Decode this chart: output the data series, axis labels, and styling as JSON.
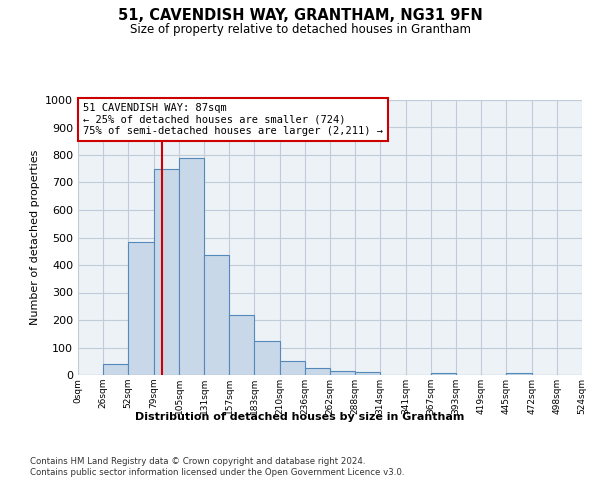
{
  "title": "51, CAVENDISH WAY, GRANTHAM, NG31 9FN",
  "subtitle": "Size of property relative to detached houses in Grantham",
  "xlabel": "Distribution of detached houses by size in Grantham",
  "ylabel": "Number of detached properties",
  "bin_edges": [
    0,
    26,
    52,
    79,
    105,
    131,
    157,
    183,
    210,
    236,
    262,
    288,
    314,
    341,
    367,
    393,
    419,
    445,
    472,
    498,
    524
  ],
  "counts": [
    0,
    40,
    485,
    750,
    790,
    435,
    220,
    125,
    50,
    25,
    15,
    10,
    0,
    0,
    8,
    0,
    0,
    8,
    0,
    0
  ],
  "bar_color": "#c8d8e8",
  "bar_edge_color": "#5588bb",
  "property_size": 87,
  "vline_color": "#cc0000",
  "annotation_text": "51 CAVENDISH WAY: 87sqm\n← 25% of detached houses are smaller (724)\n75% of semi-detached houses are larger (2,211) →",
  "annotation_box_color": "#cc0000",
  "ylim": [
    0,
    1000
  ],
  "yticks": [
    0,
    100,
    200,
    300,
    400,
    500,
    600,
    700,
    800,
    900,
    1000
  ],
  "tick_labels": [
    "0sqm",
    "26sqm",
    "52sqm",
    "79sqm",
    "105sqm",
    "131sqm",
    "157sqm",
    "183sqm",
    "210sqm",
    "236sqm",
    "262sqm",
    "288sqm",
    "314sqm",
    "341sqm",
    "367sqm",
    "393sqm",
    "419sqm",
    "445sqm",
    "472sqm",
    "498sqm",
    "524sqm"
  ],
  "footer_text": "Contains HM Land Registry data © Crown copyright and database right 2024.\nContains public sector information licensed under the Open Government Licence v3.0.",
  "background_color": "#edf2f7",
  "grid_color": "#c0ccd8"
}
